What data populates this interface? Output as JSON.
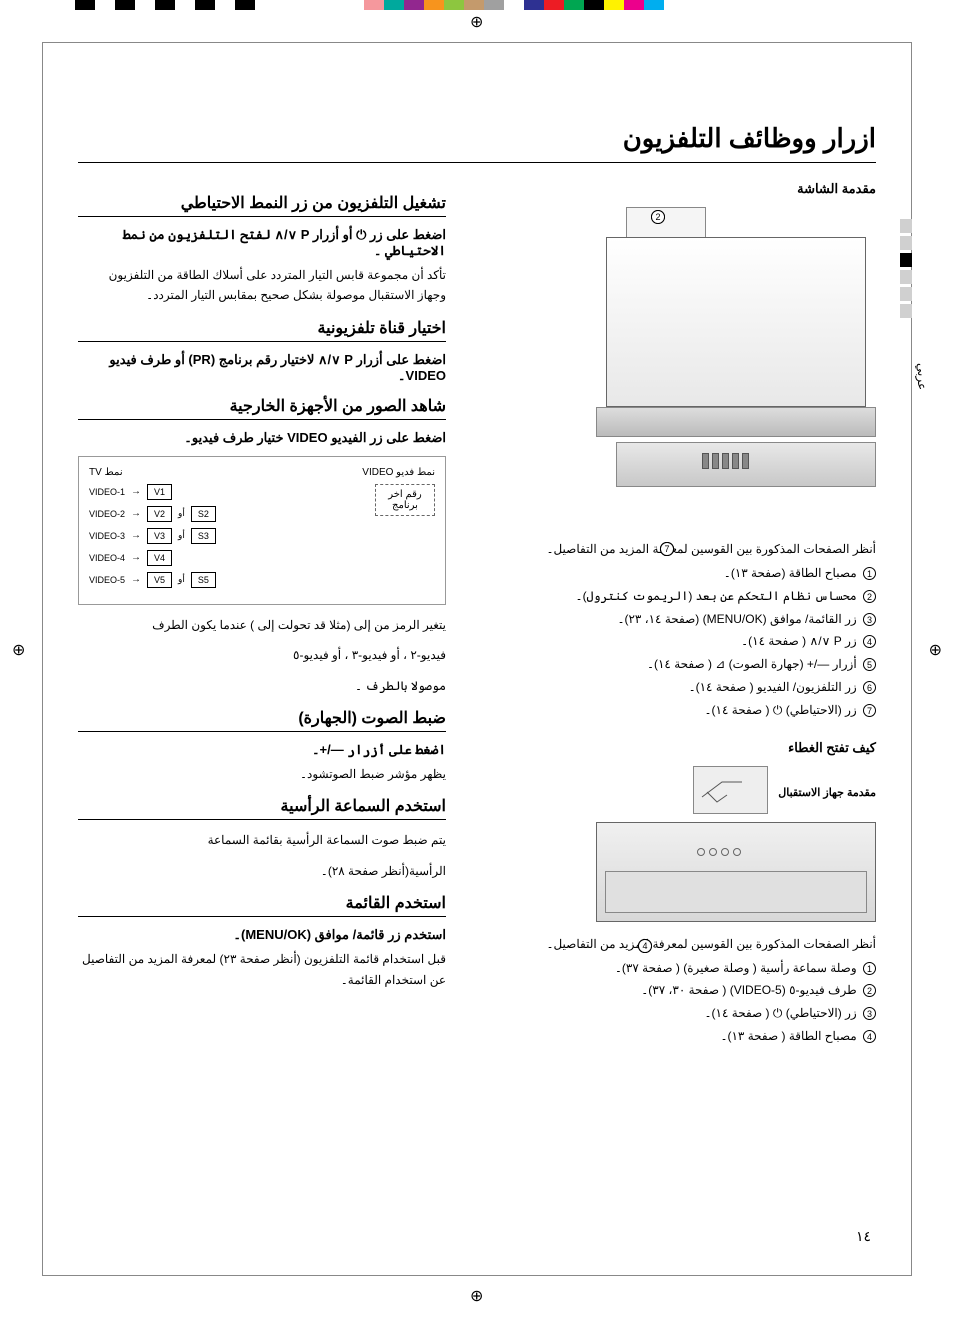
{
  "color_bars": {
    "left": [
      "#000000",
      "#ffffff",
      "#000000",
      "#ffffff",
      "#000000",
      "#ffffff",
      "#000000",
      "#ffffff",
      "#000000"
    ],
    "right": [
      "#00aeef",
      "#ec008c",
      "#fff200",
      "#000000",
      "#00a651",
      "#ed1c24",
      "#2e3192",
      "#ffffff",
      "#a0a0a0",
      "#c49a6c",
      "#8dc63f",
      "#f7941d",
      "#92278f",
      "#00a99d",
      "#f5989d"
    ]
  },
  "page_title": "ازرار ووظائف التلفزيون",
  "right_col": {
    "screen_intro": "مقدمة الشاشة",
    "refs_intro": "أنظر الصفحات المذكورة بين القوسين لمعرفة المزيد من التفاصيل۔",
    "screen_refs": [
      "مصباح الطاقة (صفحة ١٣)۔",
      "محساس نظام التحكم عن بعد (الريموت كنترول)۔",
      "زر القائمة/ موافق (MENU/OK) (صفحة ١٤، ٢٣)۔",
      "زر P ∨/∧ ( صفحة ١٤)۔",
      "أزرار —/+ (جهارة الصوت) ⊿ ( صفحة ١٤)۔",
      "زر التلفزيون/ الفيديو ( صفحة ١٤)۔",
      "زر (الاحتياطي) ⏻ ( صفحة ١٤)۔"
    ],
    "cover_open": "كيف تفتح الغطاء",
    "receiver_intro": "مقدمة جهاز الاستقبال",
    "receiver_refs_intro": "أنظر الصفحات المذكورة بين القوسين لمعرفة المزيد من التفاصيل۔",
    "receiver_refs": [
      "وصلة سماعة رأسية ( وصلة صغيرة) ( صفحة ٣٧)۔",
      "طرف فيديو-٥ (VIDEO-5) ( صفحة ٣٠، ٣٧)۔",
      "زر (الاحتياطي) ⏻ ( صفحة ١٤)۔",
      "مصباح الطاقة ( صفحة ١٣)۔"
    ],
    "side_label": "عربي"
  },
  "left_col": {
    "s1": {
      "title": "تشغيل التلفزيون من زر النمط الاحتياطي",
      "bold": "اضغط على زر ⏻ أو أزرار P ∨/∧ لفتح التلفزيون من نمط الاحتياطي ۔",
      "body": "تأكد أن مجموعة قابس التيار المتردد على أسلاك الطاقة من التلفزيون وجهاز الاستقبال موصولة بشكل صحيح بمقابس التيار المتردد۔"
    },
    "s2": {
      "title": "اختيار قناة تلفزيونية",
      "bold": "اضغط على أزرار P ∨/∧ لاختيار رقم برنامج (PR) أو طرف فيديو VIDEO۔"
    },
    "s3": {
      "title": "شاهد الصور من الأجهزة الخارجية",
      "bold": "اضغط على زر الفيديو VIDEO ختيار طرف فيديو۔",
      "diagram": {
        "header_tv": "نمط TV",
        "header_video": "نمط فديو VIDEO",
        "last_prog": "رقم اخر\nبرنامج",
        "rows": [
          {
            "left": "VIDEO-1",
            "boxes": [
              "V1"
            ]
          },
          {
            "left": "VIDEO-2",
            "boxes": [
              "V2",
              "أو",
              "S2"
            ]
          },
          {
            "left": "VIDEO-3",
            "boxes": [
              "V3",
              "أو",
              "S3"
            ]
          },
          {
            "left": "VIDEO-4",
            "boxes": [
              "V4"
            ]
          },
          {
            "left": "VIDEO-5",
            "boxes": [
              "V5",
              "أو",
              "S5"
            ]
          }
        ]
      },
      "note1": "يتغير الرمز من      إلى       (مثلا      قد تحولت إلى      ) عندما يكون الطرف",
      "note2": "فيديو-٢         ، أو فيديو-٣         ، أو فيديو-٥",
      "note3": "موصولا بالطرف ۔"
    },
    "s4": {
      "title": "ضبط الصوت (الجهارة)",
      "bold": "اضغط على أزرار —/+۔",
      "body": "يظهر مؤشر ضبط الصوتشود۔"
    },
    "s5": {
      "title": "استخدم السماعة الرأسية",
      "body1": "يتم ضبط صوت السماعة الرأسية               بقائمة السماعة",
      "body2": "الرأسية(أنظر صفحة ٢٨)۔"
    },
    "s6": {
      "title": "استخدم القائمة",
      "bold": "استخدم زر قائمة/ موافق (MENU/OK)۔",
      "body": "قبل استخدام قائمة التلفزيون (أنظر صفحة ٢٣) لمعرفة المزيد من التفاصيل عن استخدام القائمة۔"
    }
  },
  "page_number": "١٤"
}
